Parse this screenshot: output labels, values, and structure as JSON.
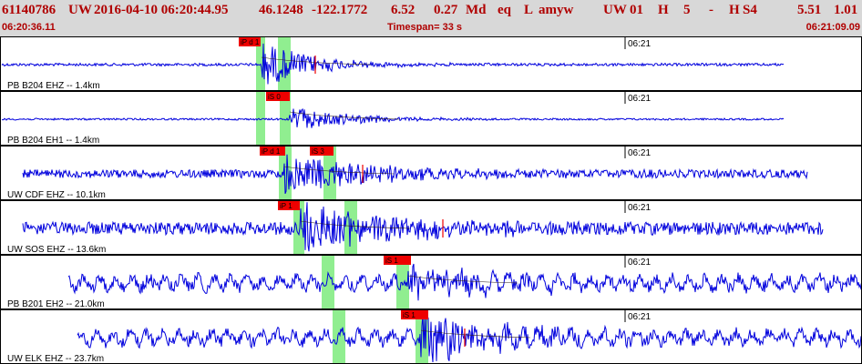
{
  "header": {
    "event_id": "61140786",
    "network": "UW",
    "datetime": "2016-04-10 06:20:44.95",
    "latitude": "46.1248",
    "longitude": "-122.1772",
    "depth": "6.52",
    "magnitude": "0.27",
    "mag_type": "Md",
    "event_type": "eq",
    "location_type": "L",
    "analyst": "amyw",
    "source": "UW",
    "version": "01",
    "quality": "H",
    "phase_count": "5",
    "separator": "-",
    "review": "H",
    "station_code": "S4",
    "rms": "5.51",
    "err": "1.01",
    "start_time": "06:20:36.11",
    "timespan": "Timespan=  33 s",
    "end_time": "06:21:09.09"
  },
  "colors": {
    "header_bg": "#d8d8d8",
    "header_text": "#b00000",
    "trace": "#0000dd",
    "pick_flag": "#ee0000",
    "pick_highlight": "#90ee90",
    "grid": "#000000"
  },
  "traces": [
    {
      "label": "PB B204 EHZ -- 1.4km",
      "time_label": "06:21",
      "style": "tight",
      "picks": [
        {
          "label": "iP d 1",
          "kind": "P"
        },
        {
          "label": "",
          "kind": "S"
        }
      ]
    },
    {
      "label": "PB B204 EH1 -- 1.4km",
      "time_label": "06:21",
      "style": "tight",
      "picks": [
        {
          "label": "",
          "kind": "P"
        },
        {
          "label": "iS 0",
          "kind": "S"
        }
      ]
    },
    {
      "label": "UW CDF EHZ -- 10.1km",
      "time_label": "06:21",
      "style": "noisy",
      "picks": [
        {
          "label": "iP d 1",
          "kind": "P"
        },
        {
          "label": "iS 3",
          "kind": "S"
        }
      ]
    },
    {
      "label": "UW SOS EHZ -- 13.6km",
      "time_label": "06:21",
      "style": "noisy",
      "picks": [
        {
          "label": "iP 1",
          "kind": "P"
        },
        {
          "label": "",
          "kind": "S"
        }
      ]
    },
    {
      "label": "PB B201 EH2 -- 21.0km",
      "time_label": "06:21",
      "style": "wavy",
      "picks": [
        {
          "label": "",
          "kind": "P"
        },
        {
          "label": "iS 1",
          "kind": "S"
        }
      ]
    },
    {
      "label": "UW ELK EHZ -- 23.7km",
      "time_label": "06:21",
      "style": "wavy",
      "picks": [
        {
          "label": "",
          "kind": "P"
        },
        {
          "label": "iS 1",
          "kind": "S"
        }
      ]
    }
  ]
}
